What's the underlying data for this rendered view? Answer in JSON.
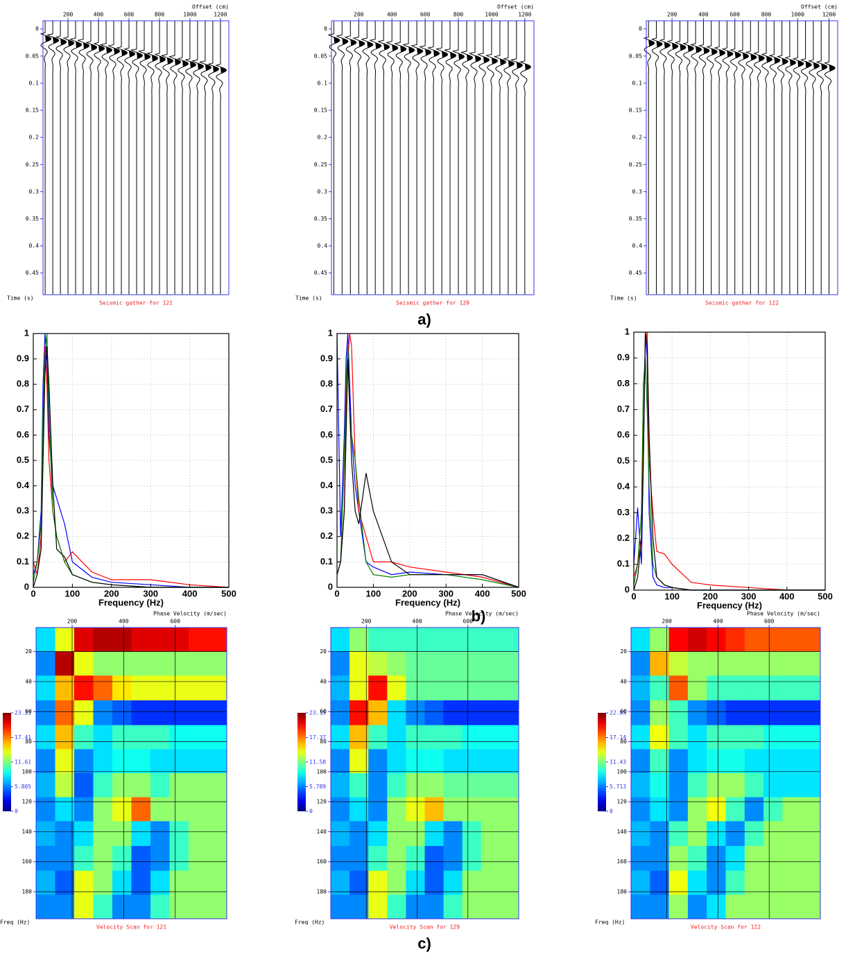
{
  "panel_labels": [
    "a)",
    "b)",
    "c)"
  ],
  "chart_data": [
    {
      "type": "seismic",
      "title": "Seismic gather for 121",
      "xlabel": "Offset (cm)",
      "ylabel": "Time (s)",
      "y_inverted": true,
      "xlim": [
        36,
        1255
      ],
      "ylim": [
        -0.015,
        0.49
      ],
      "xticks": [
        200,
        400,
        600,
        800,
        1000,
        1200
      ],
      "yticks": [
        0,
        0.05,
        0.1,
        0.15,
        0.2,
        0.25,
        0.3,
        0.35,
        0.4,
        0.45
      ],
      "x": [
        50,
        100,
        150,
        200,
        250,
        300,
        350,
        400,
        450,
        500,
        550,
        600,
        650,
        700,
        750,
        800,
        850,
        900,
        950,
        1000,
        1050,
        1100,
        1150,
        1200
      ],
      "values": [
        0.012,
        0.015,
        0.018,
        0.02,
        0.023,
        0.025,
        0.028,
        0.03,
        0.033,
        0.035,
        0.038,
        0.04,
        0.043,
        0.045,
        0.048,
        0.05,
        0.053,
        0.055,
        0.058,
        0.06,
        0.063,
        0.065,
        0.068,
        0.07
      ],
      "color": "#000000"
    },
    {
      "type": "seismic",
      "title": "Seismic gather for 129",
      "xlabel": "Offset (cm)",
      "ylabel": "Time (s)",
      "y_inverted": true,
      "xlim": [
        36,
        1255
      ],
      "ylim": [
        -0.015,
        0.49
      ],
      "xticks": [
        200,
        400,
        600,
        800,
        1000,
        1200
      ],
      "yticks": [
        0,
        0.05,
        0.1,
        0.15,
        0.2,
        0.25,
        0.3,
        0.35,
        0.4,
        0.45
      ],
      "x": [
        50,
        100,
        150,
        200,
        250,
        300,
        350,
        400,
        450,
        500,
        550,
        600,
        650,
        700,
        750,
        800,
        850,
        900,
        950,
        1000,
        1050,
        1100,
        1150,
        1200
      ],
      "values": [
        0.015,
        0.017,
        0.019,
        0.021,
        0.023,
        0.025,
        0.027,
        0.029,
        0.031,
        0.033,
        0.035,
        0.037,
        0.039,
        0.041,
        0.043,
        0.045,
        0.047,
        0.049,
        0.051,
        0.053,
        0.055,
        0.058,
        0.061,
        0.064
      ],
      "color": "#000000"
    },
    {
      "type": "seismic",
      "title": "Seismic gather for 122",
      "xlabel": "Offset (cm)",
      "ylabel": "Time (s)",
      "y_inverted": true,
      "xlim": [
        36,
        1255
      ],
      "ylim": [
        -0.015,
        0.49
      ],
      "xticks": [
        200,
        400,
        600,
        800,
        1000,
        1200
      ],
      "yticks": [
        0,
        0.05,
        0.1,
        0.15,
        0.2,
        0.25,
        0.3,
        0.35,
        0.4,
        0.45
      ],
      "x": [
        50,
        100,
        150,
        200,
        250,
        300,
        350,
        400,
        450,
        500,
        550,
        600,
        650,
        700,
        750,
        800,
        850,
        900,
        950,
        1000,
        1050,
        1100,
        1150,
        1200
      ],
      "values": [
        0.02,
        0.022,
        0.024,
        0.026,
        0.028,
        0.03,
        0.032,
        0.034,
        0.036,
        0.038,
        0.04,
        0.042,
        0.044,
        0.046,
        0.048,
        0.05,
        0.052,
        0.054,
        0.056,
        0.058,
        0.06,
        0.062,
        0.064,
        0.066
      ],
      "color": "#000000"
    },
    {
      "type": "line",
      "xlabel": "Frequency (Hz)",
      "xlim": [
        0,
        500
      ],
      "ylim": [
        0,
        1
      ],
      "xticks": [
        0,
        100,
        200,
        300,
        400,
        500
      ],
      "yticks": [
        0,
        0.1,
        0.2,
        0.3,
        0.4,
        0.5,
        0.6,
        0.7,
        0.8,
        0.9,
        1
      ],
      "grid": true,
      "x": [
        0,
        10,
        20,
        25,
        30,
        35,
        40,
        50,
        60,
        80,
        100,
        150,
        200,
        300,
        400,
        500
      ],
      "series": [
        {
          "color": "#0000ff",
          "values": [
            0.05,
            0.1,
            0.3,
            0.8,
            1,
            0.9,
            0.6,
            0.4,
            0.35,
            0.25,
            0.1,
            0.04,
            0.02,
            0.01,
            0,
            0
          ]
        },
        {
          "color": "#ff0000",
          "values": [
            0.1,
            0.05,
            0.2,
            0.6,
            0.95,
            0.8,
            0.5,
            0.3,
            0.2,
            0.1,
            0.14,
            0.06,
            0.03,
            0.03,
            0.01,
            0
          ]
        },
        {
          "color": "#008000",
          "values": [
            0.02,
            0.1,
            0.25,
            0.7,
            0.9,
            1,
            0.7,
            0.3,
            0.2,
            0.1,
            0.05,
            0.02,
            0.01,
            0,
            0,
            0
          ]
        },
        {
          "color": "#000000",
          "values": [
            0,
            0.05,
            0.15,
            0.5,
            0.85,
            0.95,
            0.8,
            0.4,
            0.15,
            0.12,
            0.05,
            0.02,
            0.01,
            0,
            0,
            0
          ]
        }
      ]
    },
    {
      "type": "line",
      "xlabel": "Frequency (Hz)",
      "xlim": [
        0,
        500
      ],
      "ylim": [
        0,
        1
      ],
      "xticks": [
        0,
        100,
        200,
        300,
        400,
        500
      ],
      "yticks": [
        0,
        0.1,
        0.2,
        0.3,
        0.4,
        0.5,
        0.6,
        0.7,
        0.8,
        0.9,
        1
      ],
      "grid": true,
      "x": [
        0,
        10,
        20,
        25,
        30,
        35,
        40,
        50,
        60,
        80,
        100,
        150,
        200,
        300,
        400,
        500
      ],
      "series": [
        {
          "color": "#0000ff",
          "values": [
            1,
            0.2,
            0.6,
            0.9,
            1,
            0.8,
            0.6,
            0.4,
            0.3,
            0.1,
            0.08,
            0.05,
            0.06,
            0.05,
            0.05,
            0
          ]
        },
        {
          "color": "#ff0000",
          "values": [
            0.1,
            0.1,
            0.3,
            0.7,
            0.9,
            1,
            0.95,
            0.5,
            0.3,
            0.2,
            0.1,
            0.1,
            0.08,
            0.06,
            0.04,
            0
          ]
        },
        {
          "color": "#008000",
          "values": [
            0.05,
            0.1,
            0.5,
            0.8,
            0.95,
            0.7,
            0.6,
            0.5,
            0.35,
            0.1,
            0.05,
            0.04,
            0.05,
            0.05,
            0.03,
            0
          ]
        },
        {
          "color": "#000000",
          "values": [
            0.05,
            0.1,
            0.3,
            0.6,
            0.9,
            0.7,
            0.5,
            0.3,
            0.25,
            0.45,
            0.3,
            0.1,
            0.05,
            0.05,
            0.05,
            0
          ]
        }
      ]
    },
    {
      "type": "line",
      "xlabel": "Frequency (Hz)",
      "xlim": [
        0,
        500
      ],
      "ylim": [
        0,
        1
      ],
      "xticks": [
        0,
        100,
        200,
        300,
        400,
        500
      ],
      "yticks": [
        0,
        0.1,
        0.2,
        0.3,
        0.4,
        0.5,
        0.6,
        0.7,
        0.8,
        0.9,
        1
      ],
      "grid": true,
      "x": [
        0,
        10,
        20,
        25,
        30,
        35,
        40,
        50,
        60,
        80,
        100,
        150,
        200,
        300,
        400,
        500
      ],
      "series": [
        {
          "color": "#0000ff",
          "values": [
            0.1,
            0.32,
            0.1,
            0.5,
            1,
            0.9,
            0.3,
            0.05,
            0.02,
            0.01,
            0.01,
            0,
            0,
            0,
            0,
            0
          ]
        },
        {
          "color": "#ff0000",
          "values": [
            0.05,
            0.1,
            0.2,
            0.6,
            0.95,
            1,
            0.5,
            0.3,
            0.15,
            0.14,
            0.1,
            0.03,
            0.02,
            0.01,
            0,
            0
          ]
        },
        {
          "color": "#008000",
          "values": [
            0.02,
            0.1,
            0.3,
            0.8,
            0.9,
            0.7,
            0.4,
            0.1,
            0.05,
            0.02,
            0.01,
            0,
            0,
            0,
            0,
            0
          ]
        },
        {
          "color": "#000000",
          "values": [
            0,
            0.05,
            0.2,
            0.5,
            1,
            0.95,
            0.6,
            0.2,
            0.05,
            0.02,
            0.01,
            0,
            0,
            0,
            0,
            0
          ]
        }
      ]
    },
    {
      "type": "heatmap",
      "title": "Velocity Scan for  121",
      "xlabel": "Phase Velocity (m/sec)",
      "ylabel": "Freq (Hz)",
      "y_inverted": true,
      "xlim": [
        60,
        800
      ],
      "ylim": [
        4,
        198
      ],
      "xticks": [
        200,
        400,
        600
      ],
      "yticks": [
        20,
        40,
        60,
        80,
        100,
        120,
        140,
        160,
        180
      ],
      "zlim": [
        0,
        23.21
      ],
      "cticks": [
        23.21,
        17.41,
        11.61,
        5.805,
        0
      ],
      "x": [
        97,
        171,
        245,
        319,
        393,
        467,
        541,
        615,
        689,
        763
      ],
      "y": [
        12,
        28,
        44,
        61,
        77,
        93,
        109,
        125,
        141,
        158,
        174,
        190
      ],
      "z": [
        [
          8,
          14,
          21,
          22,
          22,
          21,
          21,
          21,
          20,
          20
        ],
        [
          6,
          22,
          14,
          12,
          12,
          12,
          12,
          12,
          12,
          12
        ],
        [
          8,
          16,
          20,
          18,
          15,
          14,
          14,
          14,
          14,
          14
        ],
        [
          6,
          18,
          14,
          6,
          5,
          4,
          4,
          4,
          4,
          4
        ],
        [
          8,
          16,
          10,
          8,
          10,
          10,
          10,
          9,
          9,
          9
        ],
        [
          6,
          14,
          6,
          8,
          9,
          9,
          8,
          8,
          8,
          8
        ],
        [
          7,
          13,
          5,
          10,
          12,
          12,
          10,
          12,
          12,
          12
        ],
        [
          6,
          8,
          6,
          12,
          14,
          18,
          12,
          12,
          12,
          12
        ],
        [
          7,
          6,
          8,
          12,
          12,
          8,
          6,
          10,
          12,
          12
        ],
        [
          6,
          6,
          10,
          12,
          10,
          5,
          6,
          10,
          12,
          12
        ],
        [
          7,
          5,
          14,
          12,
          8,
          5,
          8,
          12,
          12,
          12
        ],
        [
          6,
          6,
          14,
          10,
          6,
          6,
          10,
          12,
          12,
          12
        ]
      ]
    },
    {
      "type": "heatmap",
      "title": "Velocity Scan for  129",
      "xlabel": "Phase Velocity (m/sec)",
      "ylabel": "Freq (Hz)",
      "y_inverted": true,
      "xlim": [
        60,
        800
      ],
      "ylim": [
        4,
        198
      ],
      "xticks": [
        200,
        400,
        600
      ],
      "yticks": [
        20,
        40,
        60,
        80,
        100,
        120,
        140,
        160,
        180
      ],
      "zlim": [
        0,
        23.15
      ],
      "cticks": [
        23.15,
        17.37,
        11.58,
        5.789,
        0
      ],
      "x": [
        97,
        171,
        245,
        319,
        393,
        467,
        541,
        615,
        689,
        763
      ],
      "y": [
        12,
        28,
        44,
        61,
        77,
        93,
        109,
        125,
        141,
        158,
        174,
        190
      ],
      "z": [
        [
          8,
          12,
          10,
          10,
          10,
          10,
          10,
          10,
          10,
          10
        ],
        [
          6,
          14,
          13,
          12,
          11,
          11,
          11,
          11,
          11,
          11
        ],
        [
          7,
          14,
          20,
          14,
          11,
          11,
          11,
          11,
          11,
          11
        ],
        [
          6,
          20,
          16,
          8,
          6,
          5,
          4,
          4,
          4,
          4
        ],
        [
          8,
          16,
          10,
          8,
          10,
          10,
          10,
          9,
          9,
          9
        ],
        [
          6,
          14,
          6,
          8,
          9,
          9,
          8,
          8,
          8,
          8
        ],
        [
          7,
          10,
          6,
          10,
          12,
          12,
          11,
          11,
          11,
          11
        ],
        [
          6,
          8,
          6,
          12,
          14,
          16,
          12,
          12,
          12,
          12
        ],
        [
          7,
          6,
          8,
          12,
          12,
          8,
          6,
          10,
          12,
          12
        ],
        [
          6,
          6,
          10,
          12,
          10,
          5,
          6,
          10,
          12,
          12
        ],
        [
          7,
          5,
          14,
          12,
          8,
          5,
          8,
          12,
          12,
          12
        ],
        [
          6,
          6,
          14,
          10,
          6,
          6,
          10,
          12,
          12,
          12
        ]
      ]
    },
    {
      "type": "heatmap",
      "title": "Velocity Scan for  122",
      "xlabel": "Phase Velocity (m/sec)",
      "ylabel": "Freq (Hz)",
      "y_inverted": true,
      "xlim": [
        60,
        800
      ],
      "ylim": [
        4,
        198
      ],
      "xticks": [
        200,
        400,
        600
      ],
      "yticks": [
        20,
        40,
        60,
        80,
        100,
        120,
        140,
        160,
        180
      ],
      "zlim": [
        0,
        22.85
      ],
      "cticks": [
        22.85,
        17.14,
        11.43,
        5.713,
        0
      ],
      "x": [
        97,
        171,
        245,
        319,
        393,
        467,
        541,
        615,
        689,
        763
      ],
      "y": [
        12,
        28,
        44,
        61,
        77,
        93,
        109,
        125,
        141,
        158,
        174,
        190
      ],
      "z": [
        [
          8,
          12,
          20,
          21,
          20,
          19,
          18,
          18,
          18,
          18
        ],
        [
          6,
          16,
          13,
          12,
          12,
          12,
          12,
          12,
          12,
          12
        ],
        [
          7,
          10,
          18,
          12,
          10,
          10,
          10,
          10,
          10,
          10
        ],
        [
          6,
          12,
          10,
          6,
          5,
          4,
          4,
          4,
          4,
          4
        ],
        [
          8,
          14,
          10,
          8,
          10,
          10,
          10,
          9,
          9,
          9
        ],
        [
          6,
          10,
          6,
          8,
          9,
          9,
          8,
          8,
          8,
          8
        ],
        [
          7,
          9,
          6,
          10,
          12,
          12,
          10,
          8,
          8,
          8
        ],
        [
          6,
          8,
          6,
          12,
          14,
          10,
          6,
          10,
          12,
          12
        ],
        [
          7,
          6,
          10,
          12,
          8,
          6,
          10,
          12,
          12,
          12
        ],
        [
          6,
          6,
          12,
          10,
          6,
          8,
          12,
          12,
          12,
          12
        ],
        [
          7,
          5,
          14,
          8,
          6,
          10,
          12,
          12,
          12,
          12
        ],
        [
          6,
          6,
          12,
          6,
          8,
          12,
          12,
          12,
          12,
          12
        ]
      ]
    }
  ]
}
